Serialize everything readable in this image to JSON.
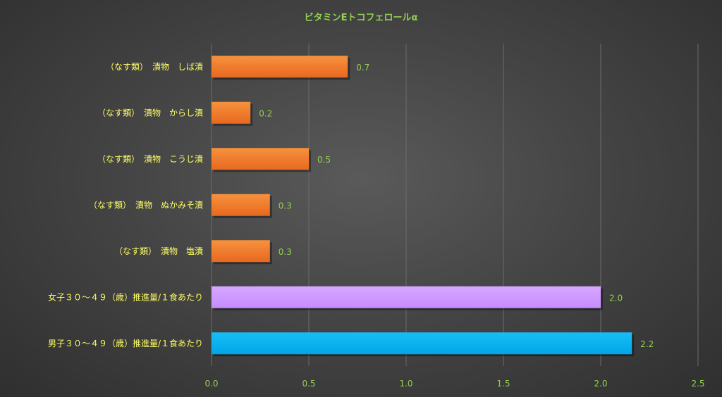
{
  "chart_data": {
    "type": "bar",
    "orientation": "horizontal",
    "title": "ビタミンEトコフェロールα",
    "categories": [
      "（なす類）　漬物　しば漬",
      "（なす類）　漬物　からし漬",
      "（なす類）　漬物　こうじ漬",
      "（なす類）　漬物　ぬかみそ漬",
      "（なす類）　漬物　塩漬",
      "女子３０～４９（歳）推進量/１食あたり",
      "男子３０～４９（歳）推進量/１食あたり"
    ],
    "values": [
      0.7,
      0.2,
      0.5,
      0.3,
      0.3,
      2.0,
      2.16
    ],
    "data_labels": [
      "0.7",
      "0.2",
      "0.5",
      "0.3",
      "0.3",
      "2.0",
      "2.2"
    ],
    "bar_colors": [
      "#f07b2c",
      "#f07b2c",
      "#f07b2c",
      "#f07b2c",
      "#f07b2c",
      "#cc99ff",
      "#00b0f0"
    ],
    "xlim": [
      0,
      2.5
    ],
    "xticks": [
      "0.0",
      "0.5",
      "1.0",
      "1.5",
      "2.0",
      "2.5"
    ],
    "grid": true,
    "legend": "none",
    "colors": {
      "title": "#92d050",
      "category_label": "#ffff66",
      "tick_label": "#92d050",
      "data_label": "#92d050",
      "gridline": "#6b6b6b"
    }
  }
}
